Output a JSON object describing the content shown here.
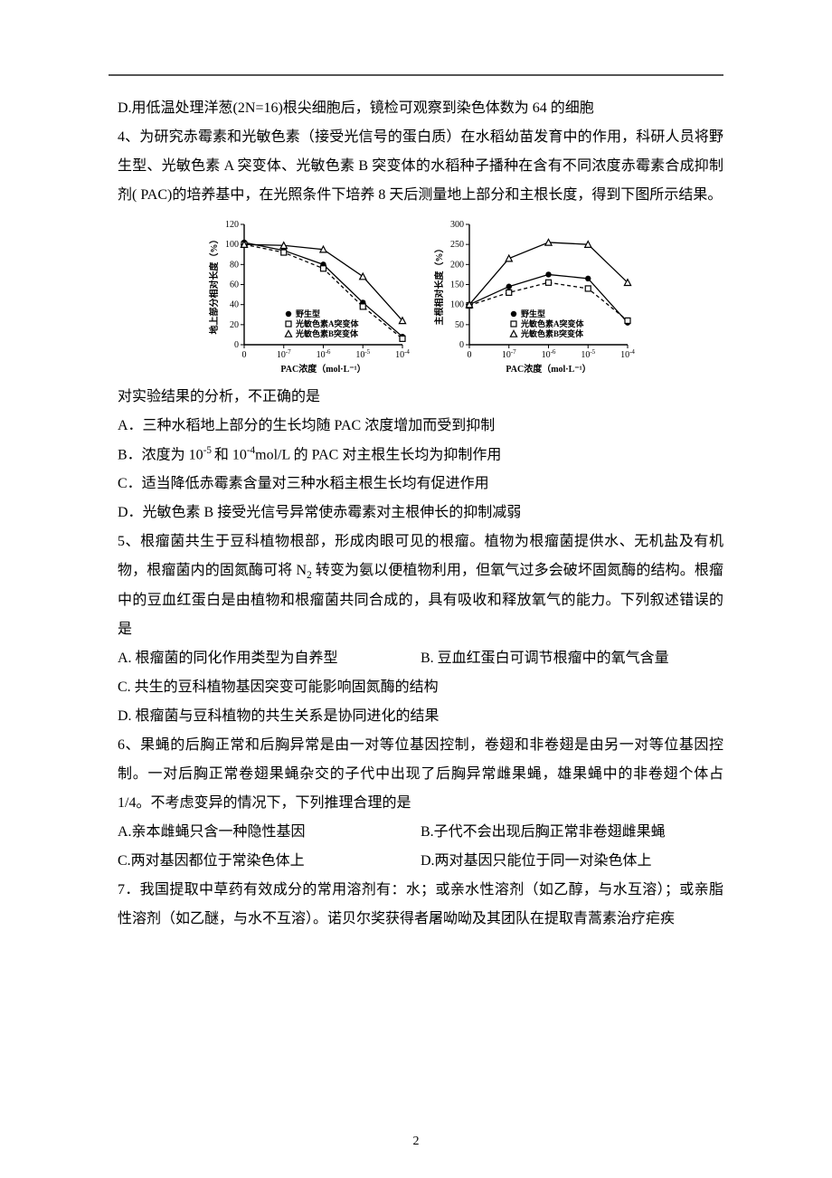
{
  "page_number": "2",
  "lines": {
    "d_line": "D.用低温处理洋葱(2N=16)根尖细胞后，镜检可观察到染色体数为 64 的细胞",
    "q4_intro": "4、为研究赤霉素和光敏色素（接受光信号的蛋白质）在水稻幼苗发育中的作用，科研人员将野生型、光敏色素 A 突变体、光敏色素 B 突变体的水稻种子播种在含有不同浓度赤霉素合成抑制剂( PAC)的培养基中，在光照条件下培养 8 天后测量地上部分和主根长度，得到下图所示结果。",
    "q4_analysis": "对实验结果的分析，不正确的是",
    "q4_a": "A．三种水稻地上部分的生长均随 PAC 浓度增加而受到抑制",
    "q4_b": "B．浓度为 10⁻⁵和 10⁻⁴mol/L 的 PAC 对主根生长均为抑制作用",
    "q4_c": "C．适当降低赤霉素含量对三种水稻主根生长均有促进作用",
    "q4_d": "D．光敏色素 B 接受光信号异常使赤霉素对主根伸长的抑制减弱",
    "q5_intro": "5、根瘤菌共生于豆科植物根部，形成肉眼可见的根瘤。植物为根瘤菌提供水、无机盐及有机物，根瘤菌内的固氮酶可将 N₂ 转变为氨以便植物利用，但氧气过多会破坏固氮酶的结构。根瘤中的豆血红蛋白是由植物和根瘤菌共同合成的，具有吸收和释放氧气的能力。下列叙述错误的是",
    "q5_a": "A.  根瘤菌的同化作用类型为自养型",
    "q5_b": "B.  豆血红蛋白可调节根瘤中的氧气含量",
    "q5_c": "C.  共生的豆科植物基因突变可能影响固氮酶的结构",
    "q5_d": "D.  根瘤菌与豆科植物的共生关系是协同进化的结果",
    "q6_intro": "6、果蝇的后胸正常和后胸异常是由一对等位基因控制，卷翅和非卷翅是由另一对等位基因控制。一对后胸正常卷翅果蝇杂交的子代中出现了后胸异常雌果蝇，雄果蝇中的非卷翅个体占 1/4。不考虑变异的情况下，下列推理合理的是",
    "q6_a": "A.亲本雌蝇只含一种隐性基因",
    "q6_b": "B.子代不会出现后胸正常非卷翅雌果蝇",
    "q6_c": "C.两对基因都位于常染色体上",
    "q6_d": "D.两对基因只能位于同一对染色体上",
    "q7_intro": "7．我国提取中草药有效成分的常用溶剂有：水；或亲水性溶剂（如乙醇，与水互溶）；或亲脂性溶剂（如乙醚，与水不互溶）。诺贝尔奖获得者屠呦呦及其团队在提取青蒿素治疗疟疾"
  },
  "chart_left": {
    "type": "line",
    "title_fontsize": 10,
    "ylabel": "地上部分相对长度（%）",
    "xlabel": "PAC浓度（mol·L⁻¹）",
    "ylim": [
      0,
      120
    ],
    "ytick_step": 20,
    "yticks": [
      0,
      20,
      40,
      60,
      80,
      100,
      120
    ],
    "xtick_labels": [
      "0",
      "10⁻⁷",
      "10⁻⁶",
      "10⁻⁵",
      "10⁻⁴"
    ],
    "background_color": "#ffffff",
    "axis_color": "#000000",
    "series": [
      {
        "name": "野生型",
        "marker": "filled-circle",
        "dash": "solid",
        "color": "#000000",
        "values": [
          102,
          94,
          80,
          42,
          8
        ]
      },
      {
        "name": "光敏色素A突变体",
        "marker": "open-square",
        "dash": "dashed",
        "color": "#000000",
        "values": [
          100,
          92,
          76,
          38,
          6
        ]
      },
      {
        "name": "光敏色素B突变体",
        "marker": "open-triangle",
        "dash": "solid",
        "color": "#000000",
        "values": [
          100,
          99,
          95,
          68,
          24
        ]
      }
    ],
    "legend_pos": "inside-lower-center"
  },
  "chart_right": {
    "type": "line",
    "ylabel": "主根相对长度（%）",
    "xlabel": "PAC浓度（mol·L⁻¹）",
    "ylim": [
      0,
      300
    ],
    "ytick_step": 50,
    "yticks": [
      0,
      50,
      100,
      150,
      200,
      250,
      300
    ],
    "xtick_labels": [
      "0",
      "10⁻⁷",
      "10⁻⁶",
      "10⁻⁵",
      "10⁻⁴"
    ],
    "background_color": "#ffffff",
    "axis_color": "#000000",
    "series": [
      {
        "name": "野生型",
        "marker": "filled-circle",
        "dash": "solid",
        "color": "#000000",
        "values": [
          100,
          145,
          175,
          165,
          55
        ]
      },
      {
        "name": "光敏色素A突变体",
        "marker": "open-square",
        "dash": "dashed",
        "color": "#000000",
        "values": [
          98,
          130,
          155,
          140,
          60
        ]
      },
      {
        "name": "光敏色素B突变体",
        "marker": "open-triangle",
        "dash": "solid",
        "color": "#000000",
        "values": [
          100,
          215,
          255,
          250,
          155
        ]
      }
    ],
    "legend_pos": "inside-lower-center"
  }
}
